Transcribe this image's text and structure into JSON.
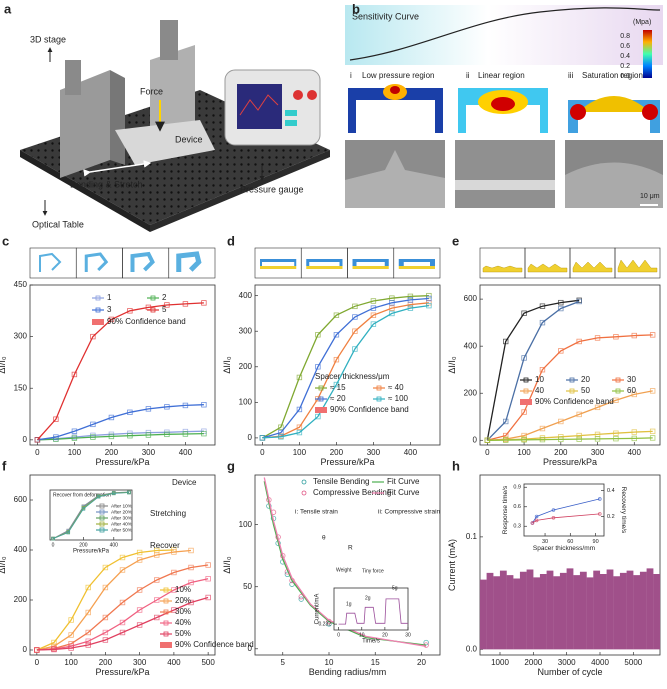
{
  "panels": {
    "a": {
      "letter": "a",
      "labels": [
        "3D stage",
        "Force",
        "Device",
        "Bending & Stretch",
        "Pressure gauge",
        "Optical Table"
      ]
    },
    "b": {
      "letter": "b",
      "title": "Sensitivity Curve",
      "unit": "(Mpa)",
      "colorbar_ticks": [
        "0.8",
        "0.6",
        "0.4",
        "0.2",
        "0.0"
      ],
      "regions": [
        {
          "numeral": "i",
          "label": "Low pressure region"
        },
        {
          "numeral": "ii",
          "label": "Linear region"
        },
        {
          "numeral": "iii",
          "label": "Saturation region"
        }
      ],
      "scale_bar": "10 μm"
    }
  },
  "chart_data": [
    {
      "panel": "c",
      "type": "line",
      "xlabel": "Pressure/kPa",
      "ylabel": "ΔI/I₀",
      "xlim": [
        -20,
        480
      ],
      "ylim": [
        -15,
        450
      ],
      "xticks": [
        0,
        100,
        200,
        300,
        400
      ],
      "yticks": [
        0,
        150,
        300,
        450
      ],
      "marker": "square",
      "x": [
        0,
        50,
        100,
        150,
        200,
        250,
        300,
        350,
        400,
        450
      ],
      "series": [
        {
          "name": "1",
          "color": "#8c9fe0",
          "values": [
            0,
            3,
            8,
            13,
            16,
            19,
            21,
            22,
            24,
            25
          ]
        },
        {
          "name": "2",
          "color": "#4caf50",
          "values": [
            0,
            2,
            5,
            8,
            10,
            12,
            14,
            16,
            17,
            18
          ]
        },
        {
          "name": "3",
          "color": "#3f6fd6",
          "values": [
            0,
            8,
            25,
            45,
            65,
            80,
            90,
            96,
            100,
            102
          ]
        },
        {
          "name": "5",
          "color": "#e03030",
          "values": [
            0,
            60,
            190,
            300,
            350,
            375,
            385,
            392,
            395,
            398
          ]
        }
      ],
      "band_label": "90% Confidence band",
      "band_color": "#f07070"
    },
    {
      "panel": "d",
      "type": "line",
      "xlabel": "Pressure/kPa",
      "ylabel": "ΔI/I₀",
      "xlim": [
        -20,
        480
      ],
      "ylim": [
        -20,
        430
      ],
      "xticks": [
        0,
        100,
        200,
        300,
        400
      ],
      "yticks": [
        0,
        100,
        200,
        300,
        400
      ],
      "marker": "square",
      "x": [
        0,
        50,
        100,
        150,
        200,
        250,
        300,
        350,
        400,
        450
      ],
      "legend_title": "Spacer thickness/μm",
      "series": [
        {
          "name": "≈ 15",
          "color": "#7fa830",
          "values": [
            0,
            30,
            170,
            290,
            345,
            370,
            385,
            393,
            398,
            400
          ]
        },
        {
          "name": "≈ 40",
          "color": "#f08040",
          "values": [
            0,
            5,
            30,
            110,
            220,
            300,
            345,
            365,
            375,
            380
          ]
        },
        {
          "name": "≈ 20",
          "color": "#3f6fd6",
          "values": [
            0,
            15,
            80,
            200,
            290,
            340,
            365,
            380,
            388,
            392
          ]
        },
        {
          "name": "≈ 100",
          "color": "#30b0c0",
          "values": [
            0,
            3,
            15,
            60,
            150,
            250,
            320,
            350,
            365,
            372
          ]
        }
      ],
      "band_label": "90% Confidence band",
      "band_color": "#f07070"
    },
    {
      "panel": "e",
      "type": "line",
      "xlabel": "Pressure/kPa",
      "ylabel": "ΔI/I₀",
      "xlim": [
        -20,
        470
      ],
      "ylim": [
        -20,
        660
      ],
      "xticks": [
        0,
        100,
        200,
        300,
        400
      ],
      "yticks": [
        0,
        200,
        400,
        600
      ],
      "marker": "square",
      "x": [
        0,
        50,
        100,
        150,
        200,
        250,
        300,
        350,
        400,
        450
      ],
      "series": [
        {
          "name": "10",
          "color": "#222222",
          "values": [
            0,
            420,
            540,
            570,
            585,
            595,
            null,
            null,
            null,
            null
          ]
        },
        {
          "name": "20",
          "color": "#4a6fa5",
          "values": [
            0,
            80,
            350,
            500,
            560,
            590,
            null,
            null,
            null,
            null
          ]
        },
        {
          "name": "30",
          "color": "#f07040",
          "values": [
            0,
            20,
            120,
            300,
            380,
            420,
            435,
            440,
            445,
            448
          ]
        },
        {
          "name": "40",
          "color": "#f0a050",
          "values": [
            0,
            5,
            20,
            50,
            80,
            110,
            140,
            170,
            195,
            210
          ]
        },
        {
          "name": "50",
          "color": "#e0c040",
          "values": [
            0,
            2,
            5,
            10,
            15,
            20,
            25,
            30,
            35,
            38
          ]
        },
        {
          "name": "60",
          "color": "#90c040",
          "values": [
            0,
            1,
            2,
            3,
            4,
            5,
            6,
            7,
            8,
            10
          ]
        }
      ],
      "band_label": "90% Confidence band",
      "band_color": "#f07070"
    },
    {
      "panel": "f",
      "type": "line",
      "xlabel": "Pressure/kPa",
      "ylabel": "ΔI/I₀",
      "xlim": [
        -20,
        520
      ],
      "ylim": [
        -20,
        700
      ],
      "xticks": [
        0,
        100,
        200,
        300,
        400,
        500
      ],
      "yticks": [
        0,
        200,
        400,
        600
      ],
      "marker": "square",
      "x": [
        0,
        50,
        100,
        150,
        200,
        250,
        300,
        350,
        400,
        450,
        500
      ],
      "series": [
        {
          "name": "10%",
          "color": "#f0c030",
          "values": [
            0,
            30,
            120,
            250,
            330,
            370,
            390,
            398,
            400,
            null,
            null
          ]
        },
        {
          "name": "20%",
          "color": "#f5a050",
          "values": [
            0,
            15,
            60,
            150,
            250,
            320,
            360,
            380,
            392,
            398,
            null
          ]
        },
        {
          "name": "30%",
          "color": "#f07850",
          "values": [
            0,
            6,
            25,
            70,
            130,
            190,
            240,
            280,
            310,
            330,
            340
          ]
        },
        {
          "name": "40%",
          "color": "#f06080",
          "values": [
            0,
            4,
            15,
            35,
            70,
            110,
            160,
            200,
            240,
            270,
            285
          ]
        },
        {
          "name": "50%",
          "color": "#e04060",
          "values": [
            0,
            2,
            8,
            20,
            40,
            70,
            100,
            130,
            160,
            190,
            210
          ]
        }
      ],
      "band_label": "90% Confidence band",
      "band_color": "#f07070",
      "annotations": [
        "Device",
        "Stretching",
        "Recover"
      ]
    },
    {
      "type": "line",
      "title": "Recover from deformation",
      "xlabel": "Pressure/kPa",
      "xlim": [
        -20,
        520
      ],
      "ylim": [
        -20,
        720
      ],
      "xticks": [
        0,
        200,
        400
      ],
      "yticks": [],
      "marker": "square",
      "x": [
        0,
        100,
        200,
        300,
        400,
        500
      ],
      "series": [
        {
          "name": "After 10%",
          "color": "#888888",
          "values": [
            0,
            120,
            480,
            640,
            680,
            690
          ]
        },
        {
          "name": "After 20%",
          "color": "#7090c0",
          "values": [
            0,
            110,
            470,
            635,
            678,
            688
          ]
        },
        {
          "name": "After 30%",
          "color": "#60a060",
          "values": [
            0,
            100,
            460,
            630,
            675,
            686
          ]
        },
        {
          "name": "After 40%",
          "color": "#a0b040",
          "values": [
            0,
            95,
            450,
            625,
            672,
            684
          ]
        },
        {
          "name": "After 50%",
          "color": "#40a0a0",
          "values": [
            0,
            90,
            440,
            620,
            670,
            682
          ]
        }
      ]
    },
    {
      "panel": "g",
      "type": "line",
      "xlabel": "Bending radius/mm",
      "ylabel": "ΔI/I₀",
      "xlim": [
        2,
        22
      ],
      "ylim": [
        -5,
        140
      ],
      "xticks": [
        5,
        10,
        15,
        20
      ],
      "yticks": [
        0,
        50,
        100
      ],
      "series": [
        {
          "name": "Tensile Bending",
          "color": "#2a9d9d",
          "mode": "markers",
          "marker": "circle",
          "x": [
            3.5,
            4,
            4.5,
            5,
            5.5,
            6,
            7,
            10,
            20.5
          ],
          "values": [
            115,
            105,
            85,
            70,
            60,
            52,
            40,
            20,
            5
          ]
        },
        {
          "name": "Fit Curve",
          "color": "#4caf50",
          "mode": "lines",
          "x": [
            3,
            4,
            5,
            6,
            8,
            10,
            14,
            20.5
          ],
          "values": [
            135,
            100,
            72,
            55,
            35,
            22,
            9,
            3
          ]
        },
        {
          "name": "Compressive Bending",
          "color": "#e05080",
          "mode": "markers",
          "marker": "circle",
          "x": [
            3.5,
            4,
            4.5,
            5,
            5.5,
            6,
            7,
            10,
            20.5
          ],
          "values": [
            120,
            110,
            90,
            75,
            62,
            55,
            42,
            22,
            3
          ]
        },
        {
          "name": "Fit Curve",
          "color": "#f080b0",
          "mode": "lines",
          "x": [
            3,
            4,
            5,
            6,
            8,
            10,
            14,
            20.5
          ],
          "values": [
            138,
            103,
            75,
            57,
            36,
            23,
            10,
            2
          ]
        }
      ],
      "annotations": [
        "i: Tensile strain",
        "ii: Compressive strain",
        "θ",
        "R"
      ]
    },
    {
      "type": "line",
      "mode": "lines",
      "xlabel": "Time/s",
      "ylabel": "Current/mA",
      "xlim": [
        -2,
        30
      ],
      "ylim": [
        0.225,
        0.275
      ],
      "xticks": [
        0,
        10,
        20,
        30
      ],
      "yticks": [
        0.232
      ],
      "x": [
        0,
        3,
        3.5,
        7,
        8,
        11,
        11.5,
        15,
        16,
        20,
        20.5,
        26,
        27,
        30
      ],
      "series": [
        {
          "color": "#9b4f9b",
          "values": [
            0.232,
            0.232,
            0.245,
            0.245,
            0.233,
            0.233,
            0.252,
            0.252,
            0.233,
            0.233,
            0.262,
            0.262,
            0.233,
            0.233
          ]
        }
      ],
      "annotations": [
        "Weight",
        "Tiny force",
        "1g",
        "2g",
        "5g"
      ]
    },
    {
      "panel": "h",
      "type": "spike",
      "xlabel": "Number of cycle",
      "ylabel": "Current (mA)",
      "xlim": [
        400,
        5800
      ],
      "ylim": [
        -0.005,
        0.155
      ],
      "xticks": [
        1000,
        2000,
        3000,
        4000,
        5000
      ],
      "yticks": [
        {
          "value": 0,
          "label": "0.0"
        },
        0.1
      ],
      "x": [
        500,
        700,
        900,
        1100,
        1300,
        1500,
        1700,
        1900,
        2100,
        2300,
        2500,
        2700,
        2900,
        3100,
        3300,
        3500,
        3700,
        3900,
        4100,
        4300,
        4500,
        4700,
        4900,
        5100,
        5300,
        5500,
        5700
      ],
      "series": [
        {
          "color": "#a0508a",
          "values": [
            0.062,
            0.068,
            0.065,
            0.07,
            0.066,
            0.063,
            0.069,
            0.071,
            0.064,
            0.067,
            0.07,
            0.065,
            0.068,
            0.072,
            0.066,
            0.069,
            0.064,
            0.07,
            0.067,
            0.071,
            0.065,
            0.068,
            0.07,
            0.066,
            0.069,
            0.072,
            0.067
          ]
        }
      ]
    },
    {
      "type": "line",
      "xlabel": "Spacer thickness/mm",
      "ylabel": "Response time/s",
      "y2label": "Recovery time/s",
      "xlim": [
        5,
        100
      ],
      "xticks": [
        30,
        60,
        90
      ],
      "ylim": [
        0.15,
        0.95
      ],
      "yticks": [
        0.3,
        0.6,
        0.9
      ],
      "y2lim": [
        0.05,
        0.45
      ],
      "y2ticks": [
        0.2,
        0.4
      ],
      "marker": "circle",
      "x": [
        15,
        20,
        40,
        95
      ],
      "series": [
        {
          "color": "#3a5fc8",
          "values": [
            0.35,
            0.45,
            0.55,
            0.72
          ]
        },
        {
          "axis": "y2",
          "color": "#d04060",
          "values": [
            0.15,
            0.17,
            0.19,
            0.22
          ]
        }
      ]
    }
  ]
}
